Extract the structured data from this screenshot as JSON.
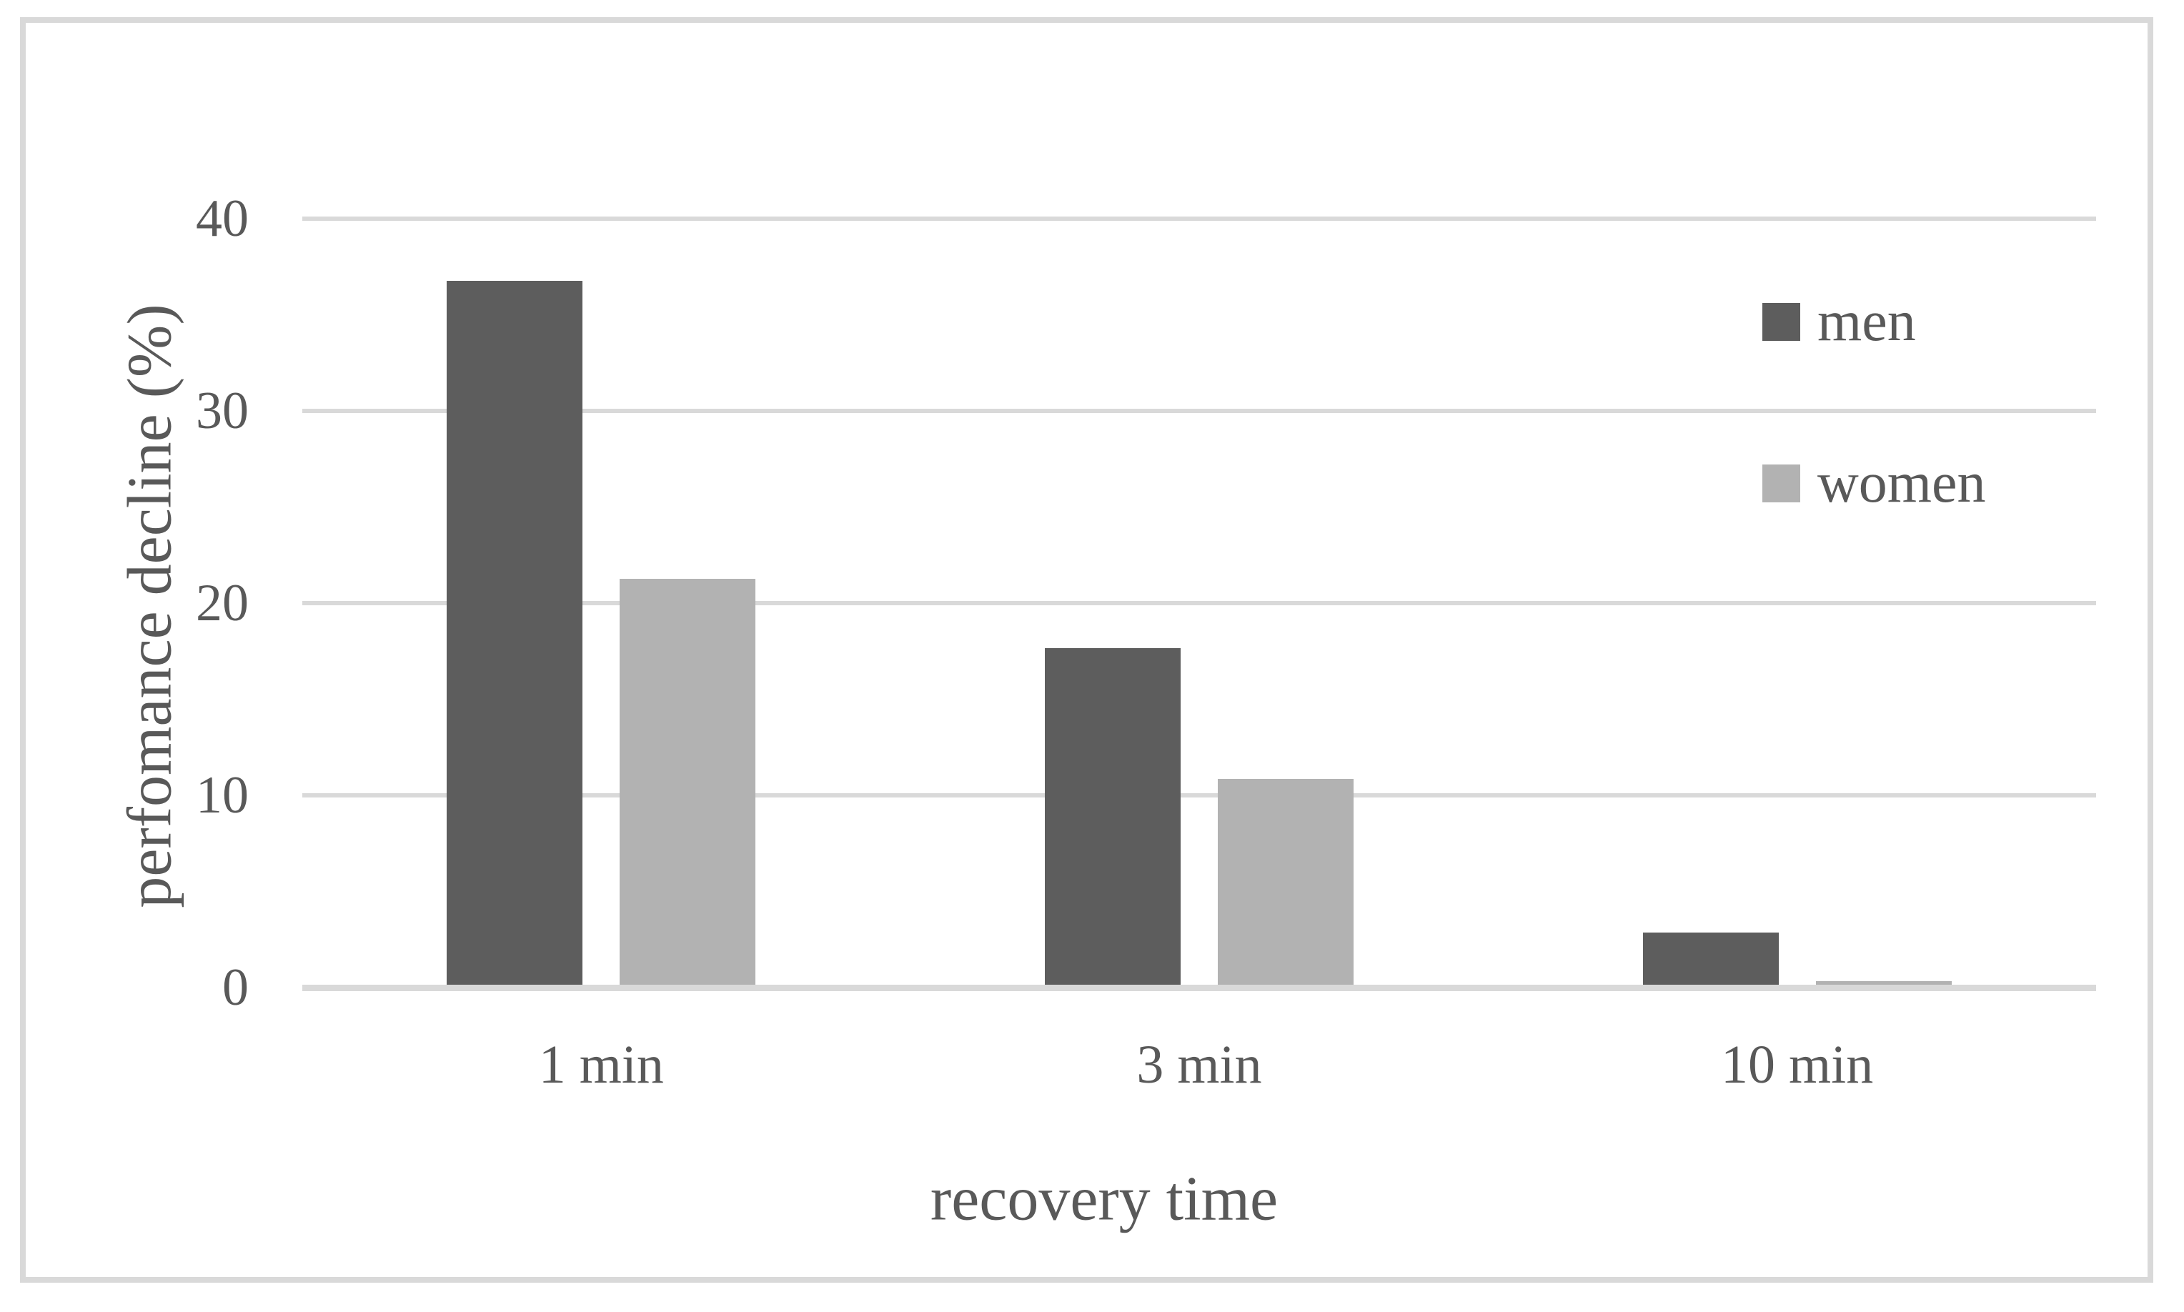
{
  "figure": {
    "background_color": "#ffffff",
    "border_color": "#d9d9d9"
  },
  "chart_data": {
    "type": "bar",
    "title": "",
    "categories": [
      "1 min",
      "3 min",
      "10 min"
    ],
    "series": [
      {
        "name": "men",
        "color": "#5d5d5d",
        "values": [
          36.6,
          17.5,
          2.7
        ]
      },
      {
        "name": "women",
        "color": "#b2b2b2",
        "values": [
          21.1,
          10.7,
          0.2
        ]
      }
    ],
    "xlabel": "recovery time",
    "ylabel": "perfomance decline (%)",
    "ylim": [
      0,
      40
    ],
    "yticks": [
      0,
      10,
      20,
      30,
      40
    ],
    "grid": "horizontal",
    "gridline_color": "#d9d9d9",
    "axis_text_color": "#595959",
    "legend_position": "right-top"
  }
}
